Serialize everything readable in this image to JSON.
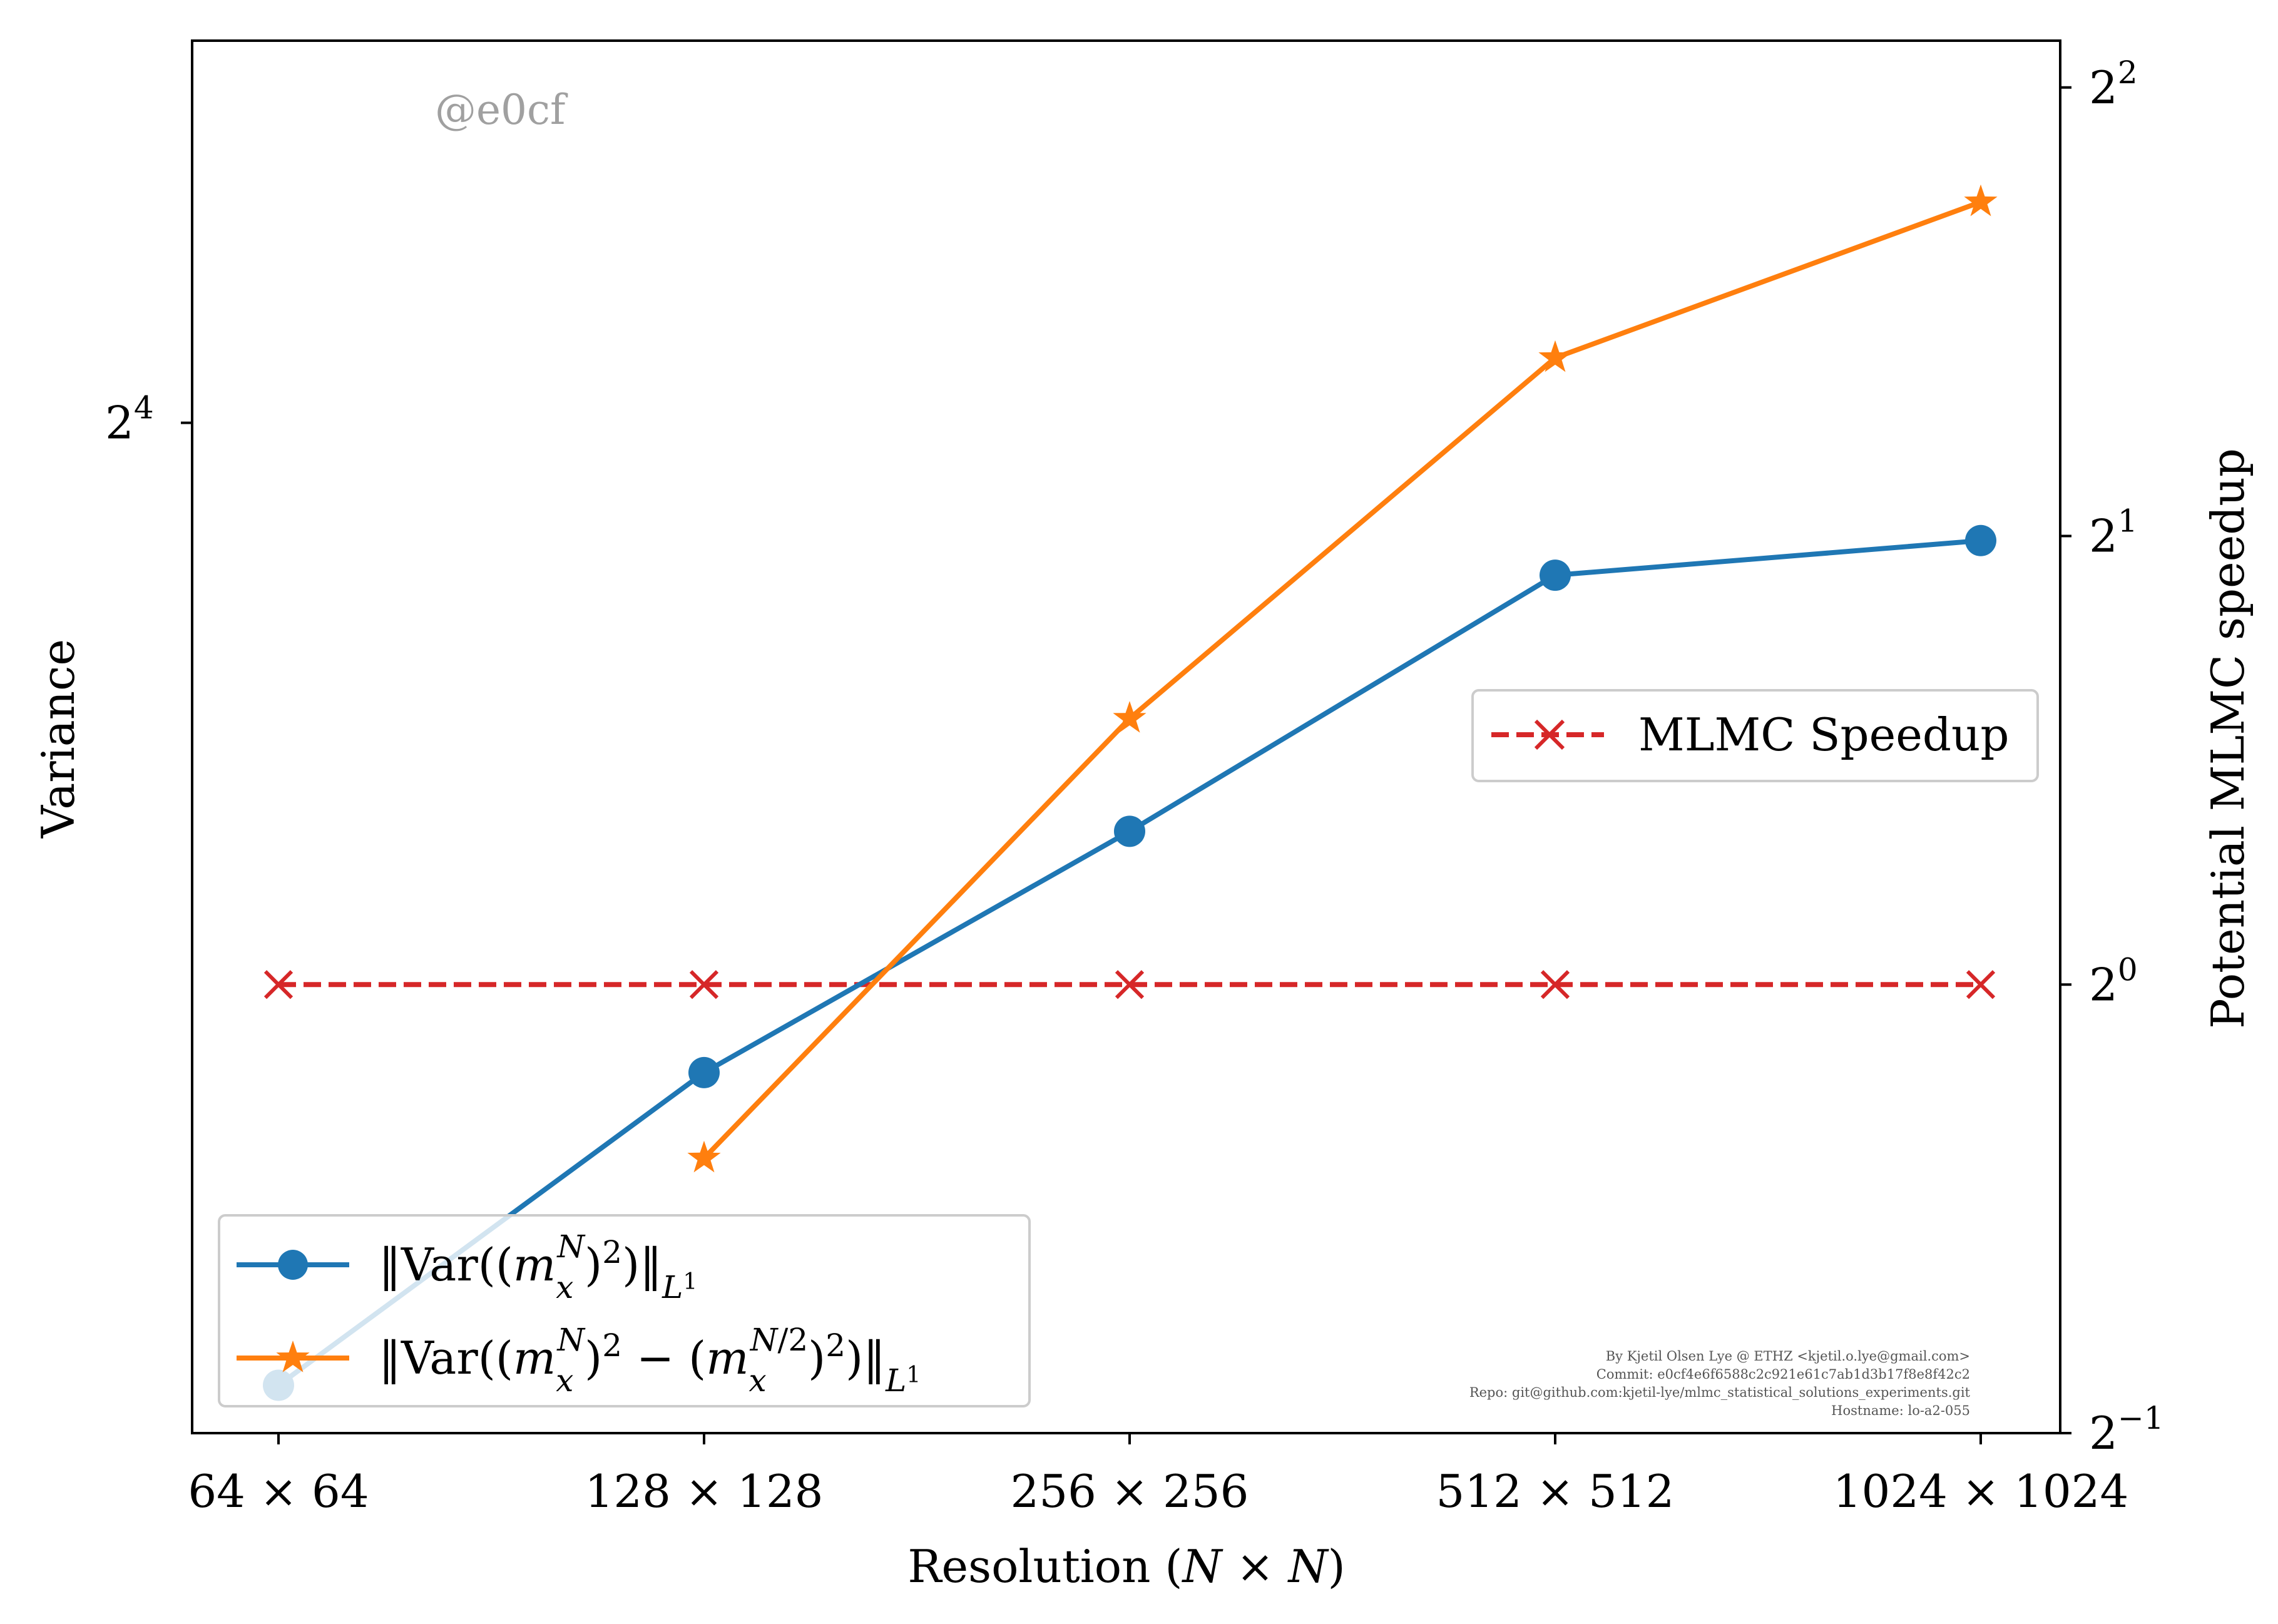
{
  "chart_data": {
    "type": "line",
    "watermark": "@e0cf",
    "x_categories": [
      "64 × 64",
      "128 × 128",
      "256 × 256",
      "512 × 512",
      "1024 × 1024"
    ],
    "xlabel": "Resolution (N × N)",
    "left_axis": {
      "label": "Variance",
      "scale": "log2",
      "ylim": [
        10.9,
        18.5
      ],
      "ticks": [
        {
          "value": 16,
          "label": "2^4"
        }
      ]
    },
    "right_axis": {
      "label": "Potential MLMC speedup",
      "scale": "log2",
      "ylim": [
        0.5,
        4.3
      ],
      "ticks": [
        {
          "value": 0.5,
          "label": "2^-1"
        },
        {
          "value": 1,
          "label": "2^0"
        },
        {
          "value": 2,
          "label": "2^1"
        },
        {
          "value": 4,
          "label": "2^2"
        }
      ]
    },
    "series": [
      {
        "name": "‖Var((m_x^N)^2)‖_{L^1}",
        "axis": "left",
        "color": "#1f77b4",
        "marker": "circle",
        "values": [
          11.1,
          12.5,
          13.7,
          15.1,
          15.3
        ]
      },
      {
        "name": "‖Var((m_x^N)^2 − (m_x^{N/2})^2)‖_{L^1}",
        "axis": "left",
        "color": "#ff7f0e",
        "marker": "star",
        "values": [
          null,
          12.1,
          14.3,
          16.4,
          17.4
        ]
      },
      {
        "name": "MLMC Speedup",
        "axis": "right",
        "color": "#d62728",
        "marker": "x",
        "linestyle": "dashed",
        "values": [
          1,
          1,
          1,
          1,
          1
        ]
      }
    ],
    "legends": [
      {
        "placement": "lower-left",
        "entries": [
          0,
          1
        ]
      },
      {
        "placement": "center-right",
        "entries": [
          2
        ]
      }
    ],
    "grid": false,
    "credits": [
      "By Kjetil Olsen Lye @ ETHZ <kjetil.o.lye@gmail.com>",
      "Commit: e0cf4e6f6588c2c921e61c7ab1d3b17f8e8f42c2",
      "Repo: git@github.com:kjetil-lye/mlmc_statistical_solutions_experiments.git",
      "Hostname: lo-a2-055"
    ]
  }
}
